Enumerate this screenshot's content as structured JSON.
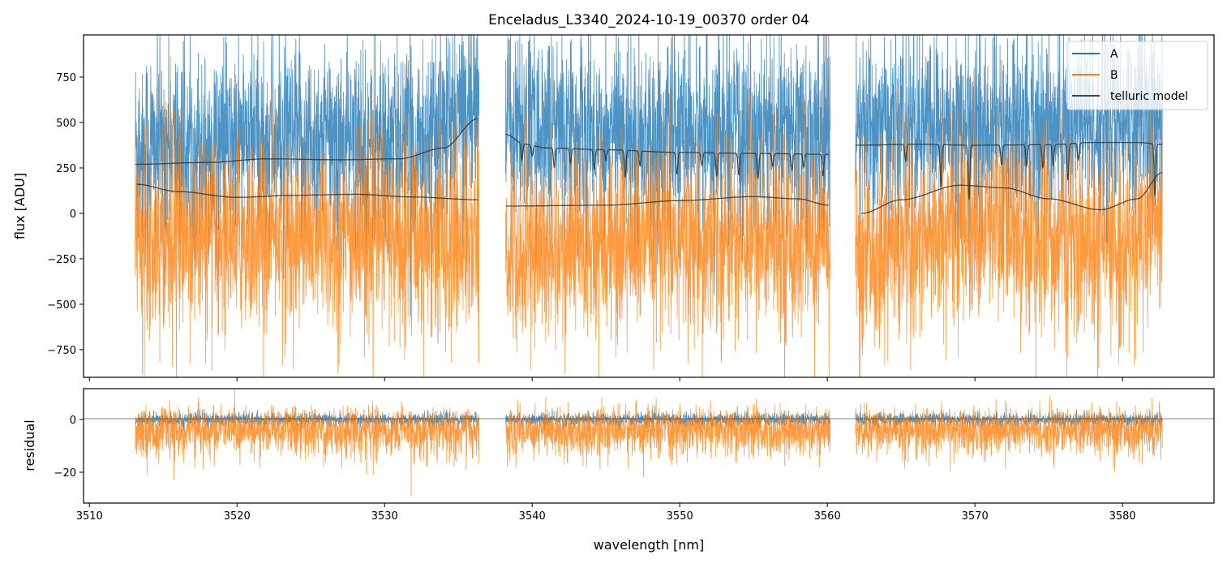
{
  "chart_data": {
    "type": "line",
    "title": "Enceladus_L3340_2024-10-19_00370  order 04",
    "xlabel": "wavelength [nm]",
    "xlim": [
      3509.6,
      3586.2
    ],
    "x_ticks": [
      3510,
      3520,
      3530,
      3540,
      3550,
      3560,
      3570,
      3580
    ],
    "segments": [
      [
        3513.1,
        3536.4
      ],
      [
        3538.2,
        3560.2
      ],
      [
        3561.9,
        3582.7
      ]
    ],
    "colors": {
      "A": "#1f77b4",
      "B": "#ff7f0e",
      "telluric": "#333333"
    },
    "legend": {
      "placement": "top-right",
      "entries": [
        "A",
        "B",
        "telluric model"
      ]
    },
    "panels": [
      {
        "name": "flux",
        "ylabel": "flux [ADU]",
        "ylim": [
          -902,
          982
        ],
        "y_ticks": [
          -750,
          -500,
          -250,
          0,
          250,
          500,
          750
        ],
        "series": [
          {
            "name": "A",
            "mean_offset_from_model": 100,
            "noise_sigma": 260
          },
          {
            "name": "B",
            "mean_offset_from_model": -230,
            "noise_sigma": 260
          }
        ],
        "telluric_model": {
          "A_continuum": [
            [
              [
                3513.1,
                270
              ],
              [
                3518,
                280
              ],
              [
                3522,
                300
              ],
              [
                3527,
                295
              ],
              [
                3531,
                300
              ],
              [
                3534,
                360
              ],
              [
                3536.3,
                520
              ]
            ],
            [
              [
                3538.2,
                435
              ],
              [
                3539.5,
                380
              ],
              [
                3541,
                360
              ],
              [
                3545,
                350
              ],
              [
                3550,
                335
              ],
              [
                3555,
                330
              ],
              [
                3560.1,
                325
              ]
            ],
            [
              [
                3561.9,
                375
              ],
              [
                3566,
                380
              ],
              [
                3570,
                375
              ],
              [
                3575,
                378
              ],
              [
                3578,
                390
              ],
              [
                3581,
                390
              ],
              [
                3582.7,
                380
              ]
            ]
          ],
          "B_continuum": [
            [
              [
                3513.2,
                160
              ],
              [
                3516,
                120
              ],
              [
                3520,
                88
              ],
              [
                3524,
                100
              ],
              [
                3528,
                105
              ],
              [
                3532,
                90
              ],
              [
                3536.3,
                75
              ]
            ],
            [
              [
                3538.2,
                40
              ],
              [
                3545,
                45
              ],
              [
                3550,
                70
              ],
              [
                3555,
                92
              ],
              [
                3558,
                80
              ],
              [
                3560.1,
                45
              ]
            ],
            [
              [
                3562.3,
                0
              ],
              [
                3565,
                75
              ],
              [
                3569,
                155
              ],
              [
                3572,
                140
              ],
              [
                3575,
                80
              ],
              [
                3578.5,
                20
              ],
              [
                3581,
                80
              ],
              [
                3582.7,
                225
              ]
            ]
          ],
          "absorption_lines": [
            [
              3539.3,
              90
            ],
            [
              3540.0,
              60
            ],
            [
              3541.5,
              110
            ],
            [
              3542.6,
              80
            ],
            [
              3544.2,
              110
            ],
            [
              3545.0,
              60
            ],
            [
              3546.3,
              150
            ],
            [
              3547.3,
              80
            ],
            [
              3549.8,
              120
            ],
            [
              3551.5,
              70
            ],
            [
              3552.5,
              130
            ],
            [
              3554.0,
              120
            ],
            [
              3555.3,
              140
            ],
            [
              3556.3,
              70
            ],
            [
              3557.6,
              90
            ],
            [
              3558.4,
              70
            ],
            [
              3559.7,
              120
            ],
            [
              3565.3,
              90
            ],
            [
              3567.7,
              230
            ],
            [
              3569.6,
              300
            ],
            [
              3571.8,
              110
            ],
            [
              3573.5,
              120
            ],
            [
              3574.6,
              130
            ],
            [
              3575.3,
              120
            ],
            [
              3576.3,
              200
            ],
            [
              3577.0,
              90
            ],
            [
              3582.2,
              290
            ]
          ]
        }
      },
      {
        "name": "residual",
        "ylabel": "residual",
        "ylim": [
          -31.7,
          11.7
        ],
        "y_ticks": [
          -20,
          0
        ],
        "zero_line": 1,
        "series": [
          {
            "name": "A",
            "noise_sigma": 1.2
          },
          {
            "name": "B",
            "mean": -4,
            "noise_sigma": 5
          }
        ]
      }
    ]
  }
}
